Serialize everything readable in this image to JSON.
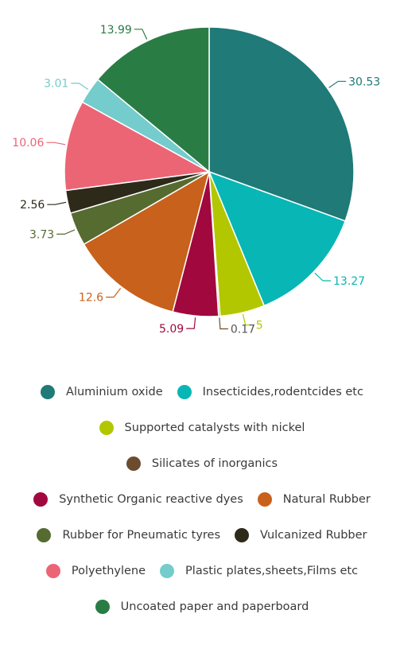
{
  "chart_data": {
    "type": "pie",
    "title": "",
    "slices": [
      {
        "name": "Aluminium oxide",
        "value": 30.53,
        "label": "30.53",
        "color": "#1f7a78"
      },
      {
        "name": "Insecticides,rodentcides etc",
        "value": 13.27,
        "label": "13.27",
        "color": "#08b6b6"
      },
      {
        "name": "Supported catalysts with nickel",
        "value": 5,
        "label": "5",
        "color": "#b3c700"
      },
      {
        "name": "Silicates of inorganics",
        "value": 0.17,
        "label": "0.17",
        "color": "#6b4c2e"
      },
      {
        "name": "Synthetic Organic reactive dyes",
        "value": 5.09,
        "label": "5.09",
        "color": "#a1083e"
      },
      {
        "name": "Natural Rubber",
        "value": 12.6,
        "label": "12.6",
        "color": "#c8611c"
      },
      {
        "name": "Rubber for Pneumatic tyres",
        "value": 3.73,
        "label": "3.73",
        "color": "#566b30"
      },
      {
        "name": "Vulcanized Rubber",
        "value": 2.56,
        "label": "2.56",
        "color": "#2e2a1a"
      },
      {
        "name": "Polyethylene",
        "value": 10.06,
        "label": "10.06",
        "color": "#ec6575"
      },
      {
        "name": "Plastic plates,sheets,Films etc",
        "value": 3.01,
        "label": "3.01",
        "color": "#74cccc"
      },
      {
        "name": "Uncoated paper and paperboard",
        "value": 13.99,
        "label": "13.99",
        "color": "#2a7c45"
      }
    ],
    "label_colors": [
      "#1f7a78",
      "#08b6b6",
      "#b3c700",
      "#555555",
      "#a1083e",
      "#c8611c",
      "#566b30",
      "#2e2a1a",
      "#ec6575",
      "#74cccc",
      "#2a7c45"
    ],
    "legend_rows": [
      [
        0,
        1
      ],
      [
        2
      ],
      [
        3
      ],
      [
        4,
        5
      ],
      [
        6,
        7
      ],
      [
        8,
        9
      ],
      [
        10
      ]
    ]
  }
}
